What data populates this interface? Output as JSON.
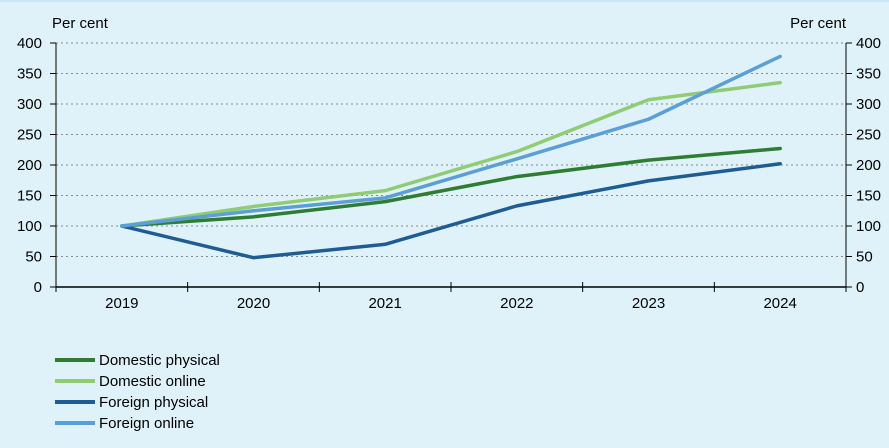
{
  "chart_data": {
    "type": "line",
    "categories": [
      "2019",
      "2020",
      "2021",
      "2022",
      "2023",
      "2024"
    ],
    "series": [
      {
        "name": "Domestic physical",
        "color": "#2e7d32",
        "values": [
          100,
          115,
          140,
          181,
          208,
          227
        ]
      },
      {
        "name": "Domestic online",
        "color": "#8fcc73",
        "values": [
          100,
          132,
          158,
          222,
          307,
          335
        ]
      },
      {
        "name": "Foreign physical",
        "color": "#1f5c92",
        "values": [
          100,
          48,
          70,
          133,
          174,
          202
        ]
      },
      {
        "name": "Foreign online",
        "color": "#5b9fd4",
        "values": [
          100,
          125,
          146,
          210,
          275,
          378
        ]
      }
    ],
    "ylabel_left": "Per cent",
    "ylabel_right": "Per cent",
    "ylim": [
      0,
      400
    ],
    "yticks": [
      "0",
      "50",
      "100",
      "150",
      "200",
      "250",
      "300",
      "350",
      "400"
    ],
    "grid": true,
    "legend_position": "bottom-left"
  }
}
